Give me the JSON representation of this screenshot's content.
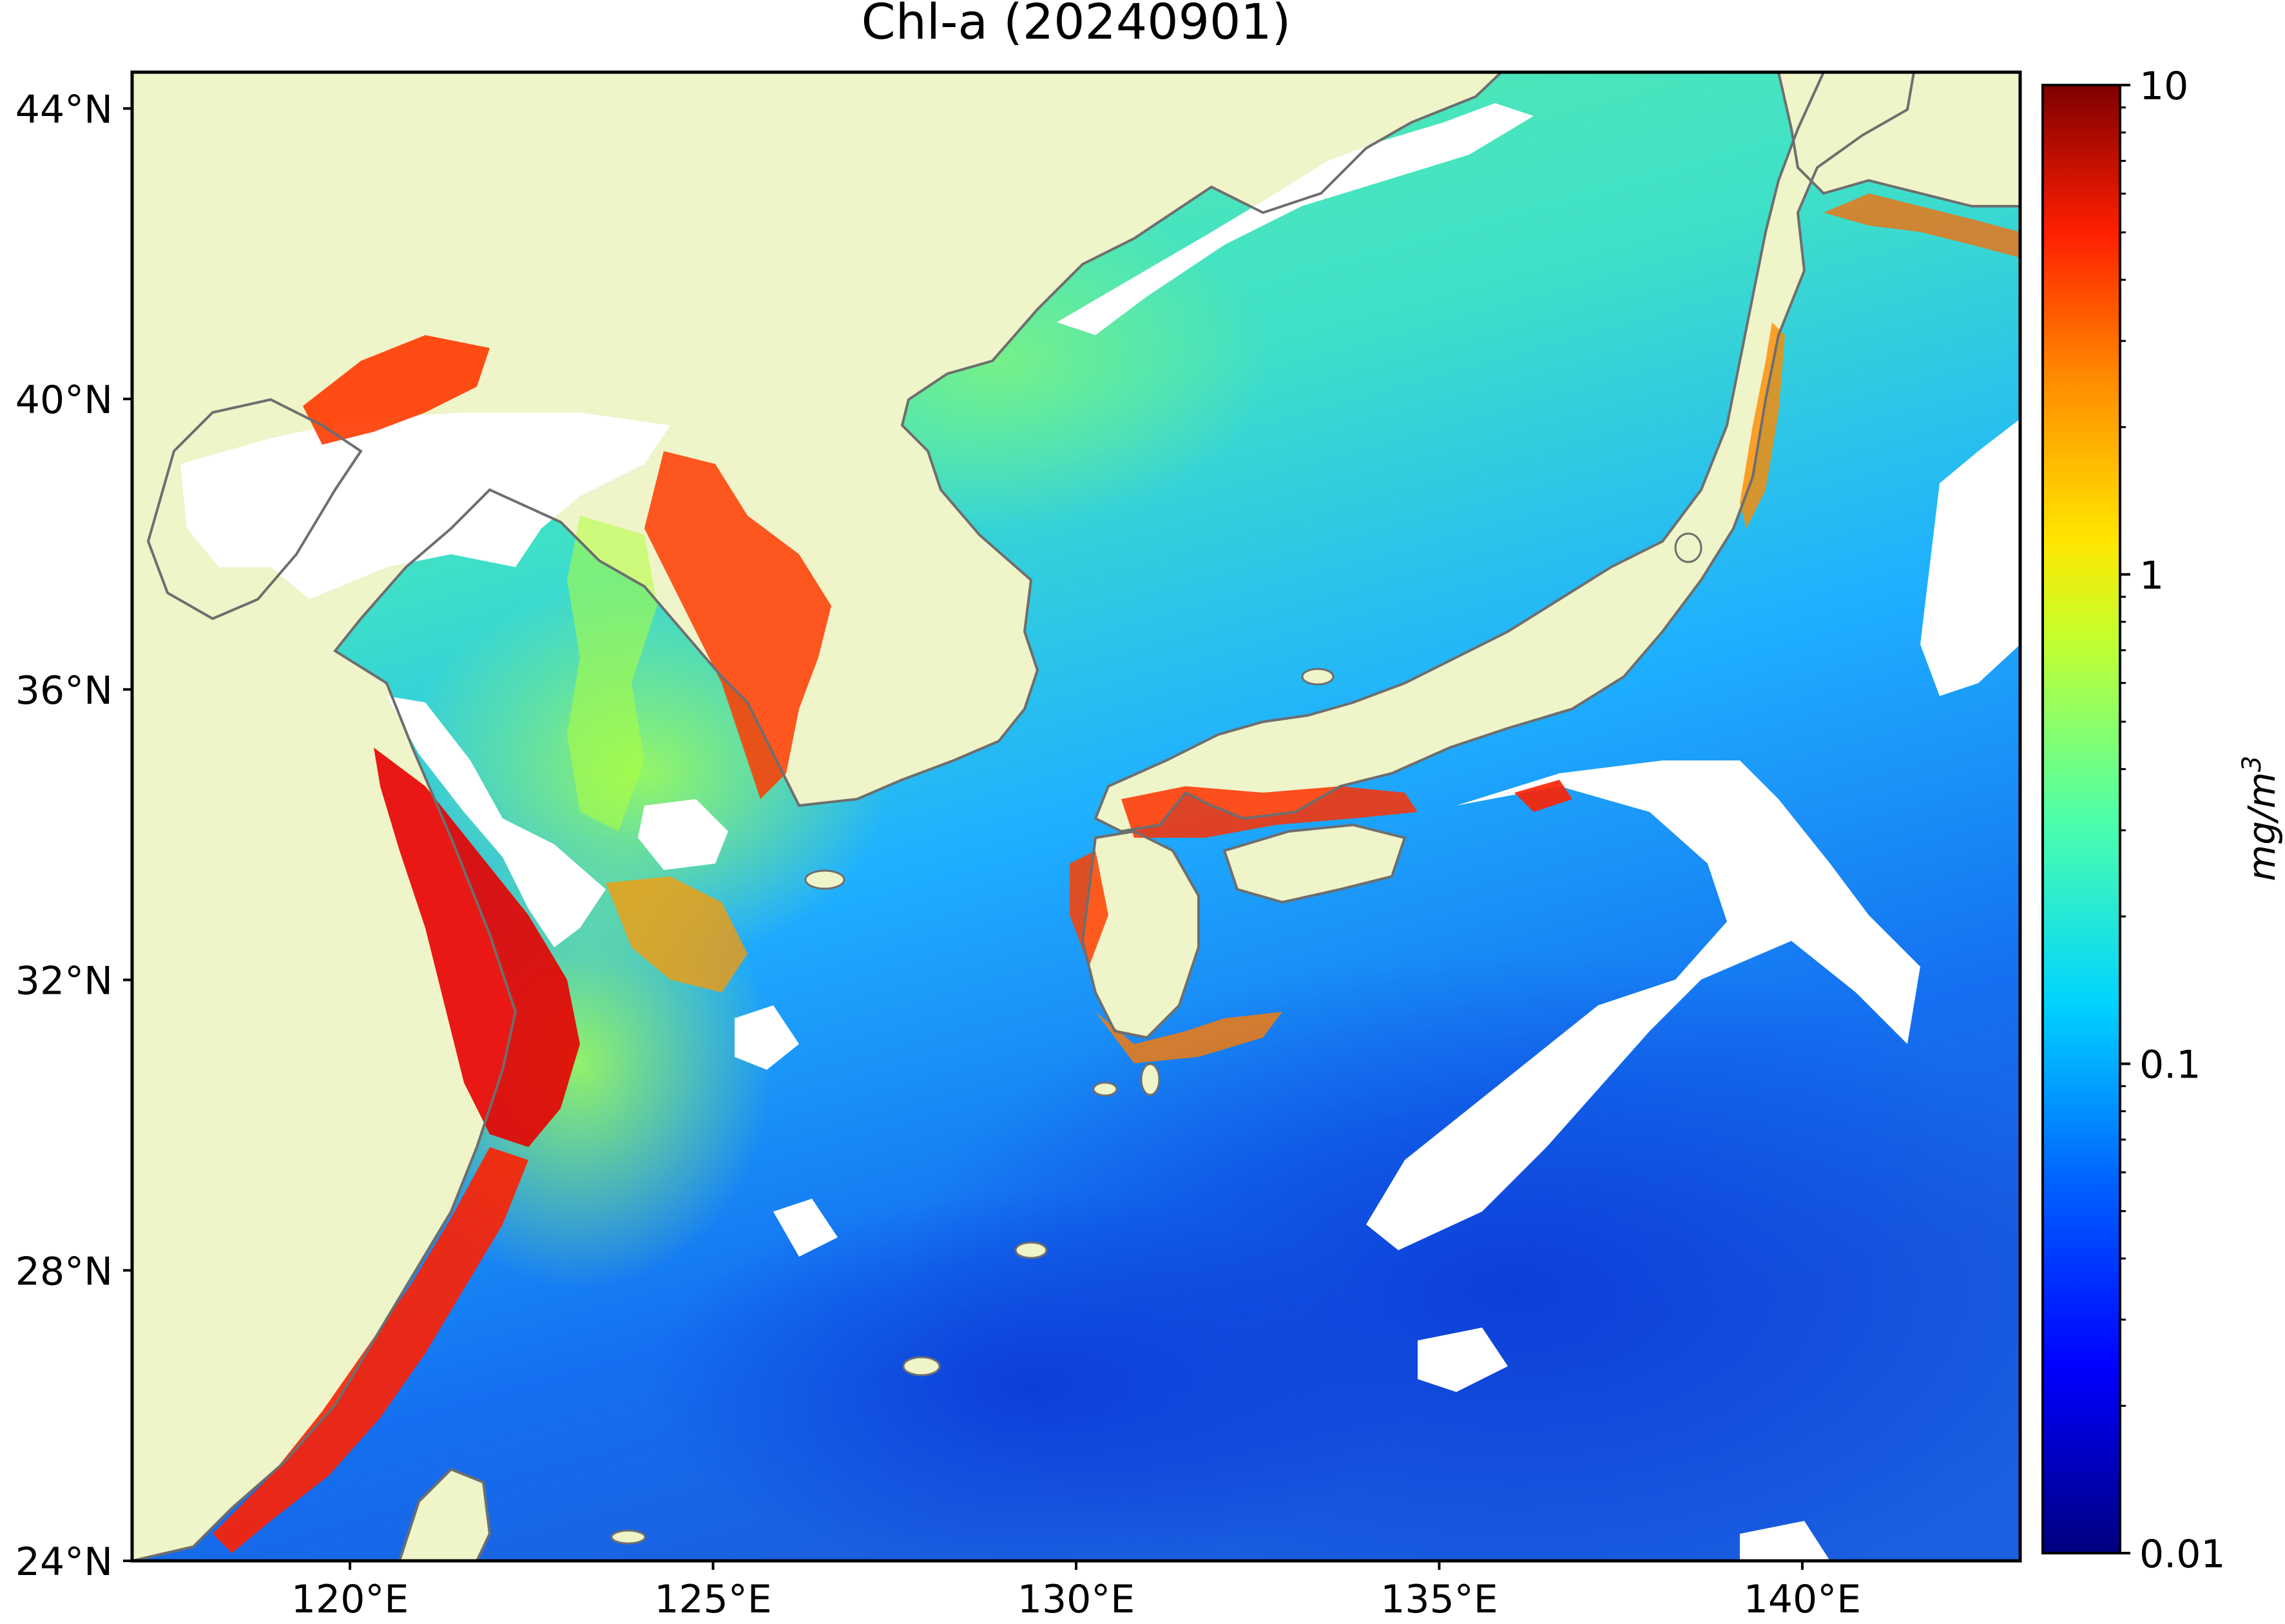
{
  "title": "Chl-a (20240901)",
  "map": {
    "lon_range": [
      117,
      143
    ],
    "lat_range": [
      24,
      44.5
    ],
    "lat_ticks": [
      {
        "value": 44,
        "label": "44°N"
      },
      {
        "value": 40,
        "label": "40°N"
      },
      {
        "value": 36,
        "label": "36°N"
      },
      {
        "value": 32,
        "label": "32°N"
      },
      {
        "value": 28,
        "label": "28°N"
      },
      {
        "value": 24,
        "label": "24°N"
      }
    ],
    "lon_ticks": [
      {
        "value": 120,
        "label": "120°E"
      },
      {
        "value": 125,
        "label": "125°E"
      },
      {
        "value": 130,
        "label": "130°E"
      },
      {
        "value": 135,
        "label": "135°E"
      },
      {
        "value": 140,
        "label": "140°E"
      }
    ],
    "colors": {
      "land": "#eff4c9",
      "no_data": "#ffffff",
      "coastline": "#6e6e6e"
    }
  },
  "colorbar": {
    "label": "mg/m3",
    "scale": "log",
    "range": [
      0.01,
      10
    ],
    "ticks": [
      {
        "value": 10,
        "label": "10"
      },
      {
        "value": 1,
        "label": "1"
      },
      {
        "value": 0.1,
        "label": "0.1"
      },
      {
        "value": 0.01,
        "label": "0.01"
      }
    ],
    "colormap": "jet",
    "colormap_stops": [
      "#00007f",
      "#0000ff",
      "#007fff",
      "#00ffff",
      "#7fff7f",
      "#ffff00",
      "#ff7f00",
      "#ff0000",
      "#7f0000"
    ]
  }
}
